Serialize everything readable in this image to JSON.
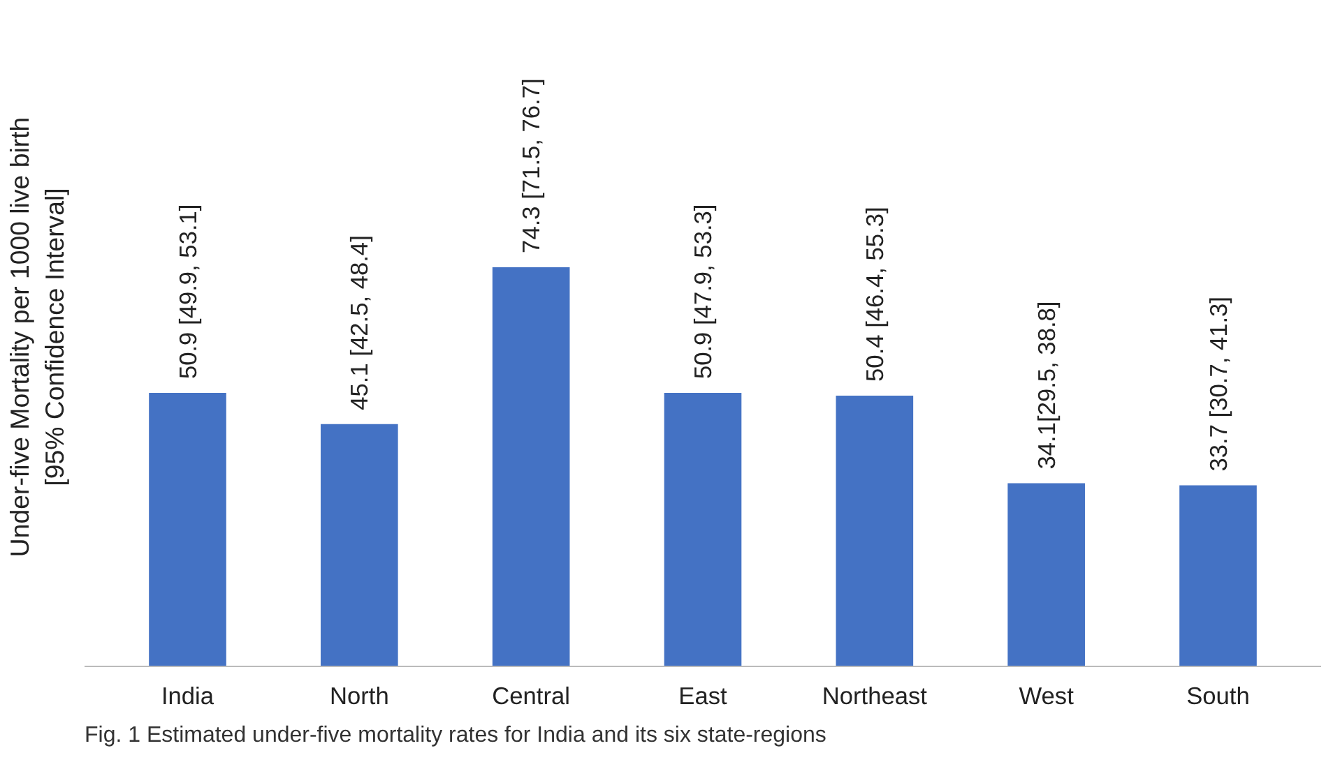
{
  "chart_data": {
    "type": "bar",
    "ylabel": "Under-five Mortality per 1000 live birth\n[95% Confidence Interval]",
    "categories": [
      "India",
      "North",
      "Central",
      "East",
      "Northeast",
      "West",
      "South"
    ],
    "values": [
      50.9,
      45.1,
      74.3,
      50.9,
      50.4,
      34.1,
      33.7
    ],
    "value_labels": [
      "50.9 [49.9, 53.1]",
      "45.1 [42.5, 48.4]",
      "74.3 [71.5, 76.7]",
      "50.9 [47.9, 53.3]",
      "50.4 [46.4, 55.3]",
      "34.1[29.5, 38.8]",
      "33.7 [30.7, 41.3]"
    ],
    "color": "#4472c4",
    "tick_labels": "x",
    "grid": false,
    "annotations": [
      "Fig. 1  Estimated under-five mortality rates for India and its six state-regions"
    ]
  }
}
